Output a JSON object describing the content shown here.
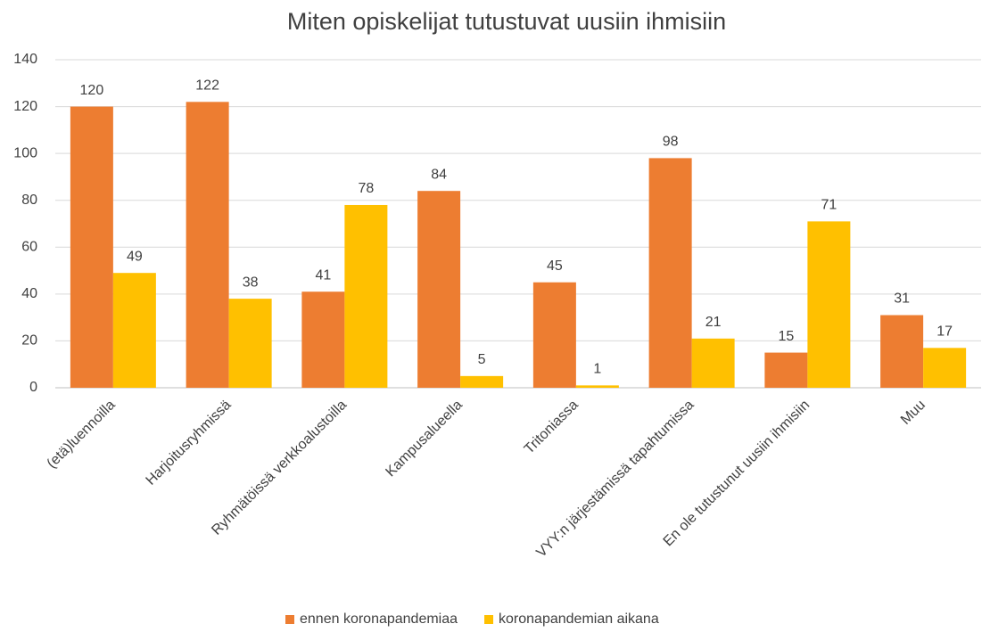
{
  "chart_data": {
    "type": "bar",
    "title": "Miten opiskelijat tutustuvat uusiin ihmisiin",
    "categories": [
      "(etä)luennoilla",
      "Harjoitusryhmissä",
      "Ryhmätöissä verkkoalustoilla",
      "Kampusalueella",
      "Tritoniassa",
      "VYY:n järjestämissä tapahtumissa",
      "En ole tutustunut uusiin ihmisiin",
      "Muu"
    ],
    "series": [
      {
        "name": "ennen koronapandemiaa",
        "color": "#ed7d31",
        "values": [
          120,
          122,
          41,
          84,
          45,
          98,
          15,
          31
        ]
      },
      {
        "name": "koronapandemian aikana",
        "color": "#ffc000",
        "values": [
          49,
          38,
          78,
          5,
          1,
          21,
          71,
          17
        ]
      }
    ],
    "ylim": [
      0,
      140
    ],
    "yticks": [
      0,
      20,
      40,
      60,
      80,
      100,
      120,
      140
    ],
    "grid": true,
    "legend": "bottom"
  }
}
